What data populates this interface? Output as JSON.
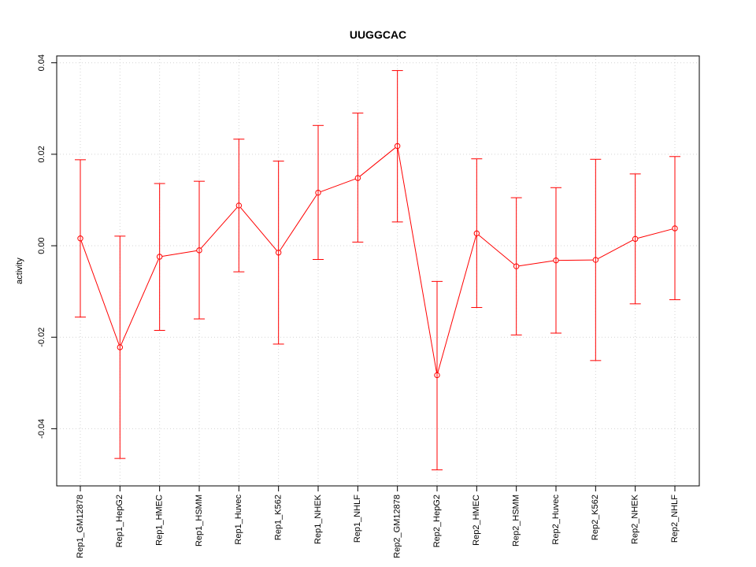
{
  "chart_data": {
    "type": "line",
    "title": "UUGGCAC",
    "xlabel": "",
    "ylabel": "activity",
    "ylim": [
      -0.0525,
      0.0415
    ],
    "yticks": [
      -0.04,
      -0.02,
      0.0,
      0.02,
      0.04
    ],
    "ytick_labels": [
      "-0.04",
      "-0.02",
      "0.00",
      "0.02",
      "0.04"
    ],
    "grid": true,
    "categories": [
      "Rep1_GM12878",
      "Rep1_HepG2",
      "Rep1_HMEC",
      "Rep1_HSMM",
      "Rep1_Huvec",
      "Rep1_K562",
      "Rep1_NHEK",
      "Rep1_NHLF",
      "Rep2_GM12878",
      "Rep2_HepG2",
      "Rep2_HMEC",
      "Rep2_HSMM",
      "Rep2_Huvec",
      "Rep2_K562",
      "Rep2_NHEK",
      "Rep2_NHLF"
    ],
    "series": [
      {
        "name": "activity",
        "color": "#ff0000",
        "values": [
          0.0016,
          -0.0222,
          -0.0024,
          -0.001,
          0.0088,
          -0.0015,
          0.0116,
          0.0148,
          0.0218,
          -0.0283,
          0.0027,
          -0.0045,
          -0.0032,
          -0.0031,
          0.0015,
          0.0038
        ],
        "upper": [
          0.0188,
          0.0021,
          0.0136,
          0.0141,
          0.0233,
          0.0185,
          0.0263,
          0.029,
          0.0383,
          -0.0078,
          0.019,
          0.0105,
          0.0127,
          0.0189,
          0.0157,
          0.0195
        ],
        "lower": [
          -0.0156,
          -0.0465,
          -0.0185,
          -0.016,
          -0.0057,
          -0.0215,
          -0.003,
          0.0008,
          0.0052,
          -0.049,
          -0.0135,
          -0.0195,
          -0.0191,
          -0.0251,
          -0.0127,
          -0.0118
        ]
      }
    ]
  }
}
